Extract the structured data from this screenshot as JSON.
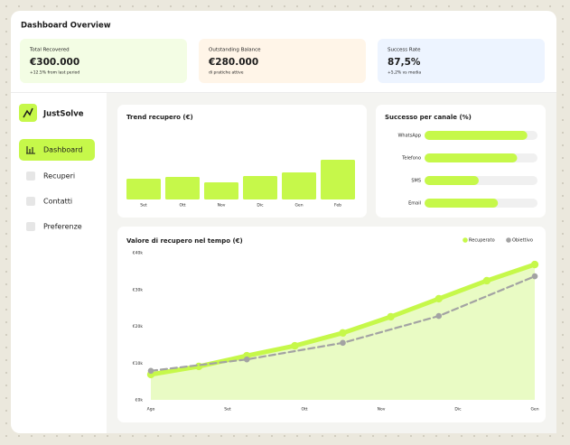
{
  "header": {
    "title": "Dashboard Overview"
  },
  "kpis": [
    {
      "label": "Total Recovered",
      "value": "€300.000",
      "note": "+12.5% from last period",
      "bg": "#f3fde4",
      "note_color": "#7cb518"
    },
    {
      "label": "Outstanding Balance",
      "value": "€280.000",
      "note": "di pratiche attive",
      "bg": "#fff5e8",
      "note_color": "#e08a1e"
    },
    {
      "label": "Success Rate",
      "value": "87,5%",
      "note": "+5,2% vs media",
      "bg": "#edf4ff",
      "note_color": "#3b7bd8"
    }
  ],
  "sidebar": {
    "brand": "JustSolve",
    "nav": [
      "Dashboard",
      "Recuperi",
      "Contatti",
      "Preferenze"
    ],
    "active": 0
  },
  "chart_data": [
    {
      "type": "bar",
      "title": "Trend recupero (€)",
      "categories": [
        "Set",
        "Ott",
        "Nov",
        "Dic",
        "Gen",
        "Feb"
      ],
      "values": [
        23,
        25,
        19,
        26,
        30,
        44
      ],
      "ylim": [
        0,
        50
      ],
      "color": "#c6f84a"
    },
    {
      "type": "hbar",
      "title": "Successo per canale (%)",
      "categories": [
        "WhatsApp",
        "Telefono",
        "SMS",
        "Email"
      ],
      "values": [
        91,
        82,
        48,
        65
      ],
      "xlim": [
        0,
        100
      ],
      "color": "#c6f84a",
      "track_color": "#f0f0f0"
    },
    {
      "type": "line",
      "title": "Valore di recupero nel tempo (€)",
      "legend": "top-right",
      "xlim": [
        0,
        5
      ],
      "xticks": [
        {
          "value": 0,
          "label": "Ago"
        },
        {
          "value": 1,
          "label": "Set"
        },
        {
          "value": 2,
          "label": "Ott"
        },
        {
          "value": 3,
          "label": "Nov"
        },
        {
          "value": 4,
          "label": "Dic"
        },
        {
          "value": 5,
          "label": "Gen"
        }
      ],
      "ylim": [
        0,
        40000
      ],
      "yticks": [
        {
          "value": 0,
          "label": "€0k"
        },
        {
          "value": 10000,
          "label": "€10k"
        },
        {
          "value": 20000,
          "label": "€20k"
        },
        {
          "value": 30000,
          "label": "€30k"
        },
        {
          "value": 40000,
          "label": "€40k"
        }
      ],
      "series": [
        {
          "name": "Recuperato",
          "color": "#c6f84a",
          "area_color": "#e9fbc4",
          "x": [
            0,
            0.625,
            1.25,
            1.875,
            2.5,
            3.125,
            3.75,
            4.375,
            5
          ],
          "values": [
            6900,
            9100,
            12000,
            14700,
            18200,
            22600,
            27500,
            32400,
            36800
          ]
        },
        {
          "name": "Obiettivo",
          "color": "#a3a3a3",
          "dashed": true,
          "x": [
            0,
            1.25,
            2.5,
            3.75,
            5
          ],
          "values": [
            7900,
            11000,
            15500,
            22800,
            33600
          ]
        }
      ]
    }
  ]
}
